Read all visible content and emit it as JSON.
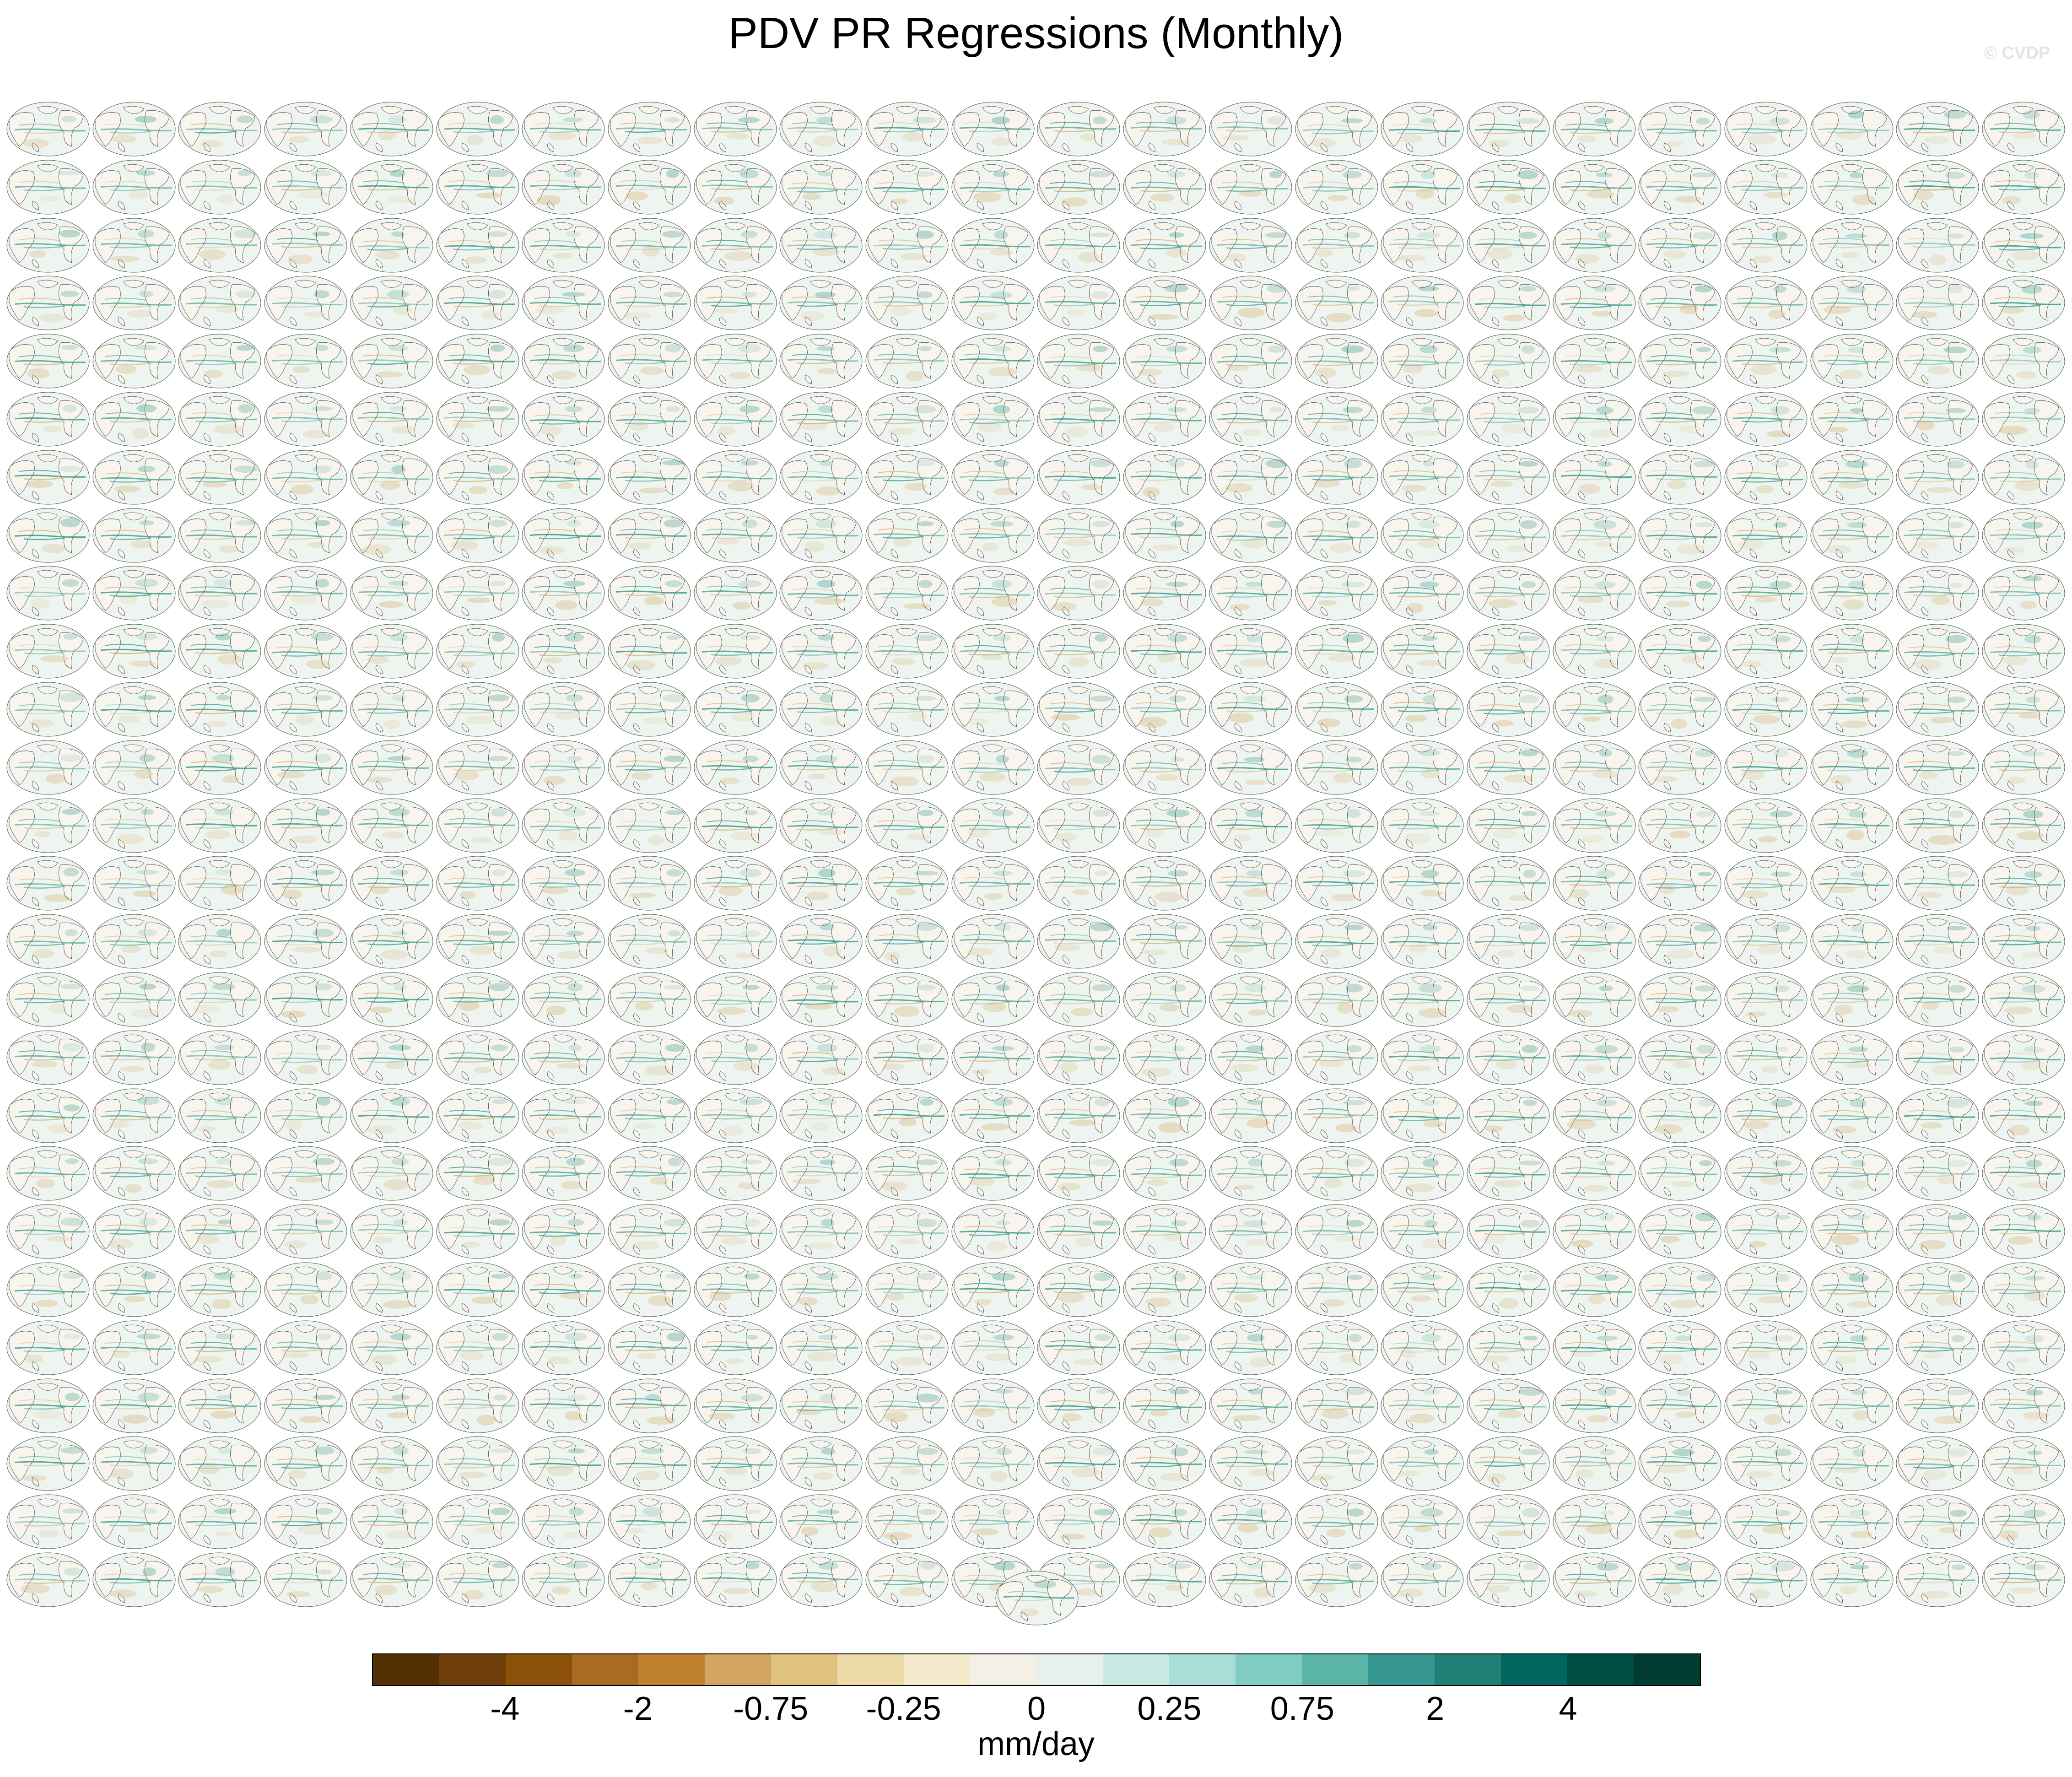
{
  "title": "PDV PR Regressions (Monthly)",
  "watermark": "© CVDP",
  "panel_grid": {
    "rows": 26,
    "columns": 24
  },
  "panel_map": {
    "ocean": "#eef5f0",
    "land": "#f8f5ee",
    "coast": "#2b2b2b",
    "dry": "#d2a560",
    "wet": "#1e8a7a",
    "rim": "#555555"
  },
  "colorbar": {
    "colors": [
      "#543005",
      "#6e3f0b",
      "#8c510a",
      "#a86b1f",
      "#bf812d",
      "#d2a560",
      "#dfc27d",
      "#ecd9a8",
      "#f5ebcc",
      "#f5f0e6",
      "#e8f0ee",
      "#c7eae5",
      "#a8ded6",
      "#80cdc1",
      "#5ab4a8",
      "#35978f",
      "#1f8176",
      "#01665e",
      "#004f45",
      "#003c30"
    ],
    "labels": [
      {
        "text": "-4",
        "after_box": 2
      },
      {
        "text": "-2",
        "after_box": 4
      },
      {
        "text": "-0.75",
        "after_box": 6
      },
      {
        "text": "-0.25",
        "after_box": 8
      },
      {
        "text": "0",
        "after_box": 10
      },
      {
        "text": "0.25",
        "after_box": 12
      },
      {
        "text": "0.75",
        "after_box": 14
      },
      {
        "text": "2",
        "after_box": 16
      },
      {
        "text": "4",
        "after_box": 18
      }
    ],
    "units": "mm/day"
  }
}
